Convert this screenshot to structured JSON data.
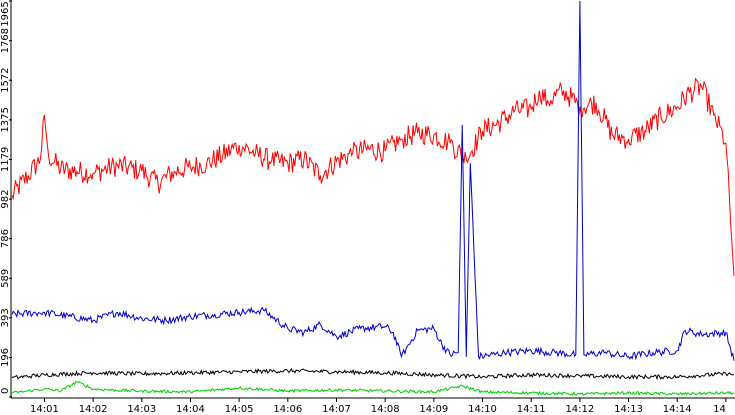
{
  "chart_data": {
    "type": "line",
    "title": "",
    "xlabel": "",
    "ylabel": "",
    "ylim": [
      0,
      1965
    ],
    "yticks": [
      "0",
      "196",
      "393",
      "589",
      "786",
      "982",
      "1179",
      "1375",
      "1572",
      "1768",
      "1965"
    ],
    "xlim": [
      "14:00:20",
      "14:15:10"
    ],
    "xticks": [
      "14:01",
      "14:02",
      "14:03",
      "14:04",
      "14:05",
      "14:06",
      "14:07",
      "14:08",
      "14:09",
      "14:10",
      "14:11",
      "14:12",
      "14:13",
      "14:14",
      "14"
    ],
    "grid": false,
    "legend": "none",
    "series": [
      {
        "color": "#ff0000",
        "x": [
          "14:00:20",
          "14:00:40",
          "14:00:55",
          "14:01:00",
          "14:01:05",
          "14:01:20",
          "14:01:40",
          "14:02:00",
          "14:02:30",
          "14:03:00",
          "14:03:20",
          "14:03:40",
          "14:04:00",
          "14:04:20",
          "14:04:40",
          "14:05:00",
          "14:05:20",
          "14:05:40",
          "14:06:00",
          "14:06:20",
          "14:06:40",
          "14:07:00",
          "14:07:20",
          "14:07:40",
          "14:08:00",
          "14:08:20",
          "14:08:40",
          "14:09:00",
          "14:09:20",
          "14:09:40",
          "14:10:00",
          "14:10:20",
          "14:10:40",
          "14:11:00",
          "14:11:10",
          "14:11:20",
          "14:11:40",
          "14:12:00",
          "14:12:20",
          "14:12:40",
          "14:13:00",
          "14:13:20",
          "14:13:40",
          "14:14:00",
          "14:14:15",
          "14:14:30",
          "14:14:45",
          "14:15:00",
          "14:15:10"
        ],
        "values": [
          1000,
          1100,
          1180,
          1400,
          1200,
          1130,
          1120,
          1110,
          1150,
          1120,
          1060,
          1120,
          1140,
          1160,
          1200,
          1250,
          1210,
          1170,
          1160,
          1180,
          1100,
          1170,
          1210,
          1230,
          1220,
          1280,
          1310,
          1300,
          1260,
          1180,
          1320,
          1360,
          1420,
          1430,
          1520,
          1470,
          1520,
          1440,
          1460,
          1300,
          1280,
          1320,
          1390,
          1440,
          1510,
          1540,
          1400,
          1260,
          600
        ]
      },
      {
        "color": "#0000cc",
        "x": [
          "14:00:20",
          "14:01:00",
          "14:01:30",
          "14:02:00",
          "14:02:30",
          "14:03:00",
          "14:03:30",
          "14:04:00",
          "14:04:30",
          "14:05:00",
          "14:05:30",
          "14:06:00",
          "14:06:20",
          "14:06:40",
          "14:07:00",
          "14:07:30",
          "14:08:00",
          "14:08:10",
          "14:08:20",
          "14:08:40",
          "14:09:00",
          "14:09:10",
          "14:09:20",
          "14:09:30",
          "14:09:35",
          "14:09:40",
          "14:09:45",
          "14:09:55",
          "14:10:30",
          "14:11:00",
          "14:11:30",
          "14:11:55",
          "14:12:00",
          "14:12:05",
          "14:12:30",
          "14:13:00",
          "14:13:30",
          "14:14:00",
          "14:14:10",
          "14:14:30",
          "14:15:00",
          "14:15:10"
        ],
        "values": [
          410,
          420,
          400,
          380,
          420,
          390,
          380,
          400,
          410,
          420,
          430,
          340,
          320,
          360,
          300,
          340,
          350,
          320,
          200,
          330,
          340,
          260,
          210,
          220,
          1350,
          200,
          1160,
          200,
          220,
          230,
          220,
          210,
          1965,
          210,
          220,
          200,
          220,
          230,
          330,
          310,
          320,
          180
        ]
      },
      {
        "color": "#000000",
        "x": [
          "14:00:20",
          "14:01:00",
          "14:02:00",
          "14:03:00",
          "14:04:00",
          "14:05:00",
          "14:06:00",
          "14:07:00",
          "14:08:00",
          "14:09:00",
          "14:10:00",
          "14:11:00",
          "14:12:00",
          "14:13:00",
          "14:14:00",
          "14:15:00",
          "14:15:10"
        ],
        "values": [
          95,
          110,
          120,
          115,
          120,
          125,
          130,
          125,
          120,
          110,
          100,
          110,
          105,
          100,
          100,
          115,
          110
        ]
      },
      {
        "color": "#00cc00",
        "x": [
          "14:00:20",
          "14:01:00",
          "14:01:20",
          "14:01:40",
          "14:02:00",
          "14:02:20",
          "14:03:00",
          "14:04:00",
          "14:05:00",
          "14:06:00",
          "14:07:00",
          "14:08:00",
          "14:09:00",
          "14:09:35",
          "14:10:00",
          "14:11:00",
          "14:12:00",
          "14:13:00",
          "14:14:00",
          "14:15:00",
          "14:15:10"
        ],
        "values": [
          20,
          40,
          30,
          75,
          40,
          35,
          30,
          25,
          45,
          30,
          35,
          30,
          25,
          55,
          25,
          20,
          15,
          20,
          15,
          20,
          20
        ]
      }
    ]
  }
}
